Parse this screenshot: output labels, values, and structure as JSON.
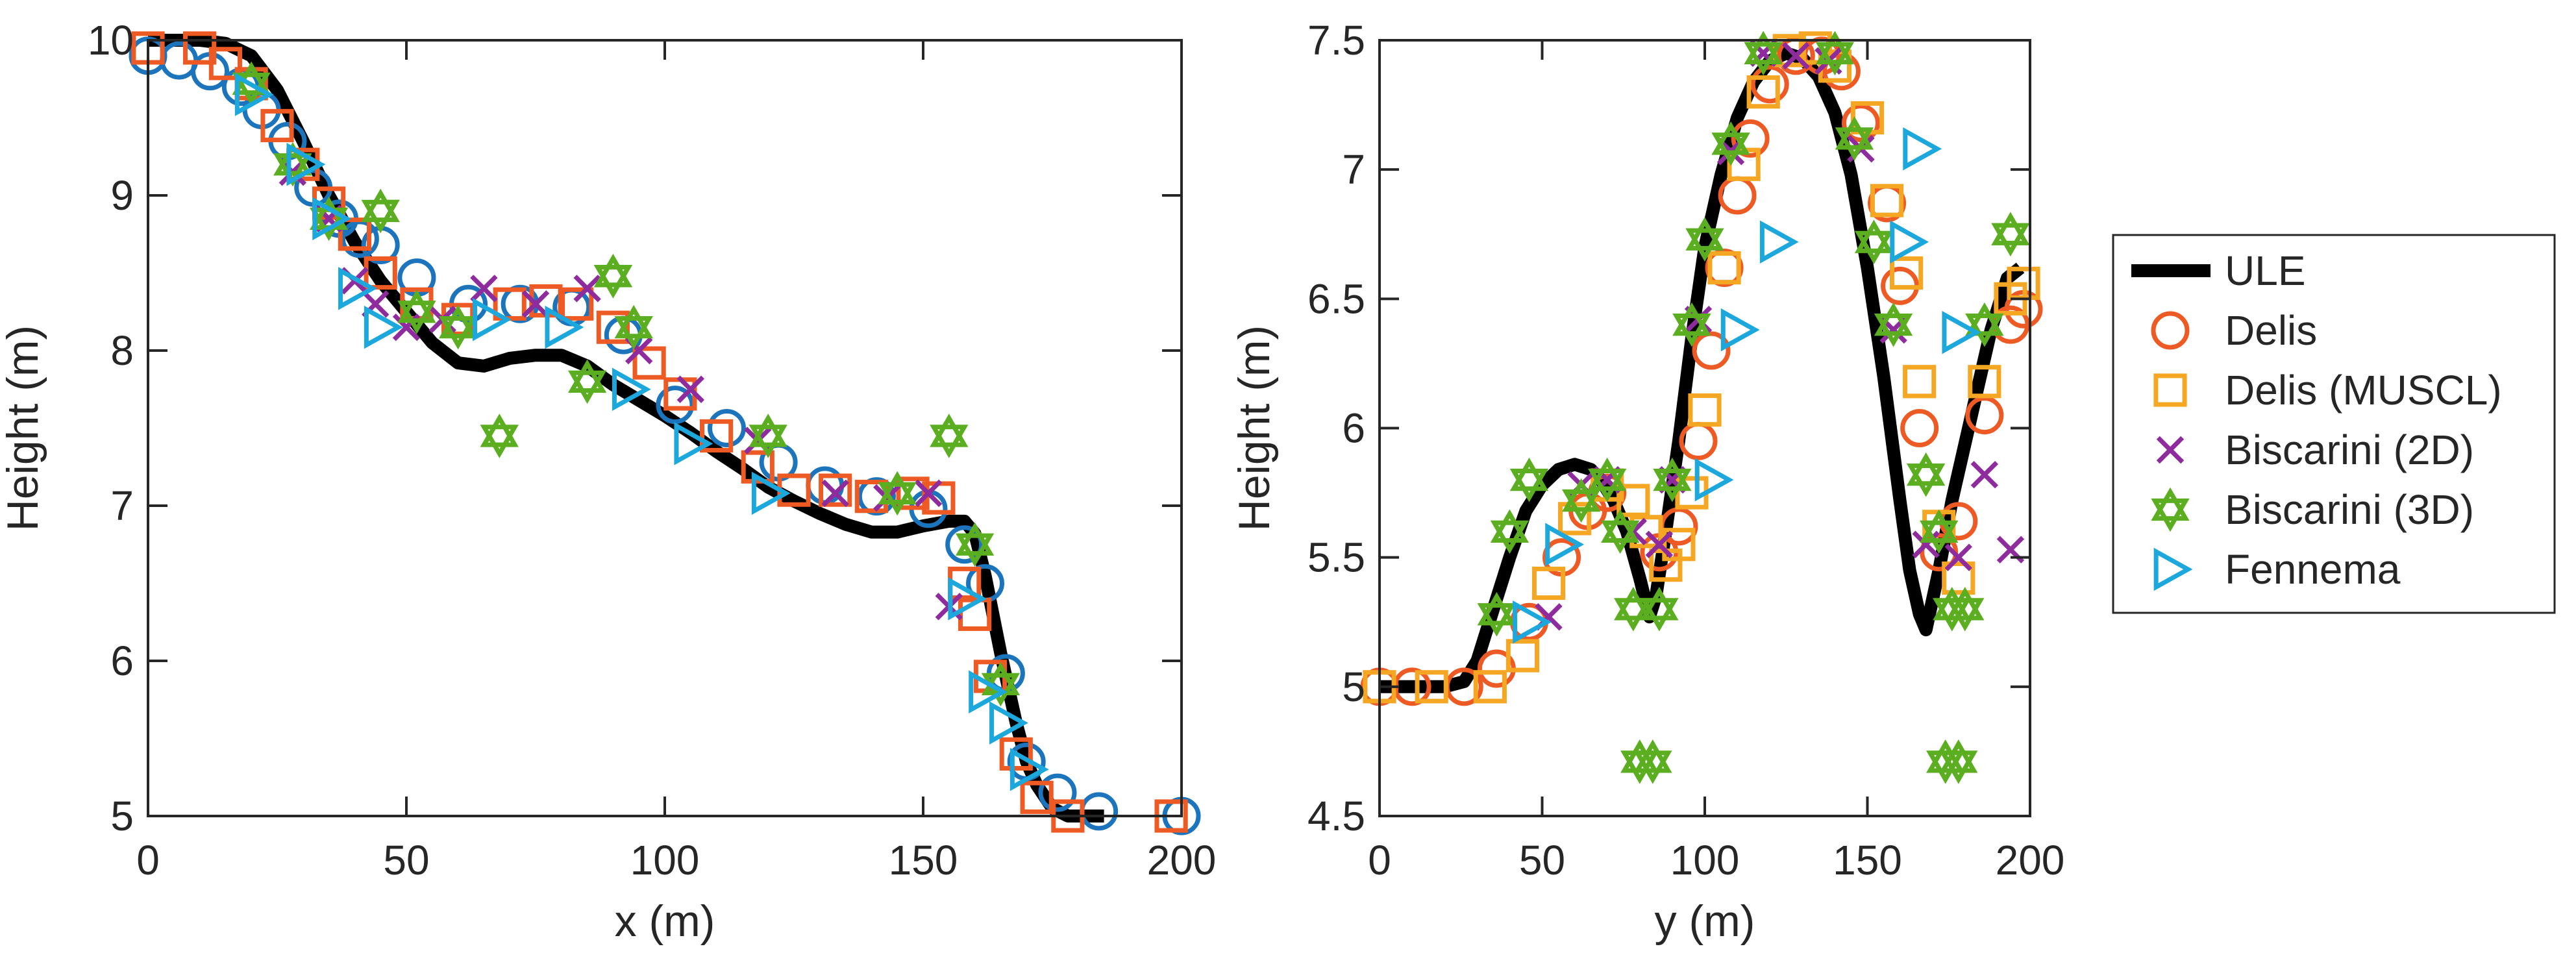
{
  "colors": {
    "ULE": "#000000",
    "Delis": "#EE5A24",
    "Delis (MUSCL)": "#F5A623",
    "Biscarini (2D)": "#8E2C9E",
    "Biscarini (3D)": "#5AAE1F",
    "Fennema": "#1CA8DD",
    "Delis-left": "#1C75BC"
  },
  "legend": {
    "entries": [
      {
        "name": "ULE",
        "marker": "line"
      },
      {
        "name": "Delis",
        "marker": "circle"
      },
      {
        "name": "Delis (MUSCL)",
        "marker": "square"
      },
      {
        "name": "Biscarini (2D)",
        "marker": "x"
      },
      {
        "name": "Biscarini (3D)",
        "marker": "hexagram"
      },
      {
        "name": "Fennema",
        "marker": "triangle-right"
      }
    ]
  },
  "chart_data": [
    {
      "type": "line",
      "xlabel": "x (m)",
      "ylabel": "Height (m)",
      "xlim": [
        0,
        200
      ],
      "ylim": [
        5,
        10
      ],
      "xticks": [
        0,
        50,
        100,
        150,
        200
      ],
      "yticks": [
        5,
        6,
        7,
        8,
        9,
        10
      ],
      "series": [
        {
          "name": "ULE",
          "marker": "line",
          "x": [
            0,
            10,
            15,
            20,
            25,
            30,
            35,
            40,
            45,
            50,
            55,
            60,
            65,
            70,
            75,
            80,
            85,
            90,
            95,
            100,
            105,
            110,
            115,
            120,
            125,
            130,
            135,
            140,
            145,
            150,
            155,
            158,
            160,
            162,
            165,
            168,
            170,
            172,
            175,
            178,
            180,
            185
          ],
          "y": [
            10,
            10,
            9.98,
            9.9,
            9.68,
            9.35,
            9.0,
            8.7,
            8.45,
            8.25,
            8.05,
            7.92,
            7.9,
            7.95,
            7.97,
            7.97,
            7.9,
            7.78,
            7.68,
            7.58,
            7.47,
            7.35,
            7.24,
            7.12,
            7.03,
            6.95,
            6.88,
            6.83,
            6.83,
            6.87,
            6.9,
            6.9,
            6.82,
            6.55,
            6.05,
            5.6,
            5.35,
            5.2,
            5.05,
            5.0,
            5.0,
            5.0
          ]
        },
        {
          "name": "Delis",
          "marker": "circle",
          "color_key": "Delis-left",
          "x": [
            0,
            6,
            12,
            18,
            22,
            27,
            32,
            37,
            41,
            45,
            52,
            62,
            72,
            82,
            92,
            102,
            112,
            122,
            131,
            141,
            151,
            158,
            162,
            166,
            170,
            176,
            184,
            200
          ],
          "y": [
            9.9,
            9.87,
            9.8,
            9.7,
            9.55,
            9.35,
            9.05,
            8.85,
            8.72,
            8.68,
            8.47,
            8.3,
            8.3,
            8.28,
            8.1,
            7.65,
            7.5,
            7.28,
            7.13,
            7.06,
            6.98,
            6.75,
            6.5,
            5.92,
            5.35,
            5.15,
            5.03,
            5.0
          ]
        },
        {
          "name": "Delis (MUSCL)",
          "marker": "square",
          "color_key": "Delis",
          "x": [
            0,
            10,
            15,
            20,
            25,
            30,
            35,
            40,
            45,
            52,
            60,
            70,
            77,
            83,
            90,
            97,
            103,
            110,
            118,
            125,
            133,
            140,
            148,
            153,
            158,
            160,
            163,
            168,
            172,
            178,
            198
          ],
          "y": [
            9.95,
            9.95,
            9.85,
            9.72,
            9.45,
            9.2,
            8.95,
            8.75,
            8.5,
            8.3,
            8.2,
            8.3,
            8.32,
            8.3,
            8.15,
            7.92,
            7.72,
            7.45,
            7.25,
            7.1,
            7.1,
            7.06,
            7.08,
            7.05,
            6.5,
            6.3,
            5.9,
            5.4,
            5.12,
            5.0,
            5.0
          ]
        },
        {
          "name": "Biscarini (2D)",
          "marker": "x",
          "x": [
            28,
            35,
            40,
            44,
            50,
            57,
            65,
            75,
            85,
            95,
            105,
            118,
            133,
            143,
            151,
            155
          ],
          "y": [
            9.15,
            8.85,
            8.45,
            8.3,
            8.15,
            8.2,
            8.4,
            8.3,
            8.4,
            8.0,
            7.75,
            7.42,
            7.08,
            7.05,
            7.08,
            6.35
          ]
        },
        {
          "name": "Biscarini (3D)",
          "marker": "hexagram",
          "x": [
            20,
            28,
            35,
            45,
            52,
            60,
            68,
            85,
            90,
            90,
            94,
            120,
            145,
            155,
            160,
            165
          ],
          "y": [
            9.72,
            9.2,
            8.85,
            8.9,
            8.25,
            8.15,
            7.45,
            7.8,
            8.48,
            8.48,
            8.15,
            7.45,
            7.08,
            7.45,
            6.75,
            5.85
          ]
        },
        {
          "name": "Fennema",
          "marker": "triangle-right",
          "x": [
            20,
            30,
            35,
            40,
            45,
            66,
            80,
            93,
            105,
            120,
            158,
            162,
            166,
            170
          ],
          "y": [
            9.65,
            9.2,
            8.85,
            8.4,
            8.15,
            8.2,
            8.15,
            7.75,
            7.4,
            7.08,
            6.4,
            5.8,
            5.6,
            5.3
          ]
        }
      ]
    },
    {
      "type": "line",
      "xlabel": "y (m)",
      "ylabel": "Height (m)",
      "xlim": [
        0,
        200
      ],
      "ylim": [
        4.5,
        7.5
      ],
      "xticks": [
        0,
        50,
        100,
        150,
        200
      ],
      "yticks": [
        4.5,
        5,
        5.5,
        6,
        6.5,
        7,
        7.5
      ],
      "series": [
        {
          "name": "ULE",
          "marker": "line",
          "x": [
            0,
            20,
            26,
            30,
            35,
            40,
            45,
            50,
            55,
            60,
            65,
            68,
            72,
            76,
            80,
            83,
            85,
            88,
            92,
            96,
            100,
            105,
            110,
            115,
            120,
            125,
            130,
            135,
            140,
            145,
            150,
            155,
            160,
            163,
            166,
            168,
            172,
            176,
            182,
            188,
            193,
            197
          ],
          "y": [
            5.0,
            5.0,
            5.02,
            5.1,
            5.3,
            5.5,
            5.68,
            5.78,
            5.84,
            5.86,
            5.84,
            5.8,
            5.72,
            5.6,
            5.42,
            5.27,
            5.35,
            5.6,
            5.95,
            6.35,
            6.7,
            6.98,
            7.2,
            7.34,
            7.42,
            7.45,
            7.43,
            7.36,
            7.22,
            6.98,
            6.62,
            6.2,
            5.72,
            5.45,
            5.28,
            5.22,
            5.45,
            5.72,
            6.05,
            6.38,
            6.58,
            6.62
          ]
        },
        {
          "name": "Delis",
          "marker": "circle",
          "color_key": "Delis",
          "x": [
            0,
            10,
            26,
            36,
            46,
            56,
            64,
            70,
            86,
            92,
            98,
            102,
            106,
            110,
            114,
            120,
            128,
            136,
            142,
            148,
            156,
            160,
            166,
            172,
            178,
            186,
            194,
            198
          ],
          "y": [
            5.0,
            5.0,
            5.0,
            5.07,
            5.25,
            5.5,
            5.68,
            5.75,
            5.52,
            5.62,
            5.95,
            6.3,
            6.62,
            6.9,
            7.12,
            7.33,
            7.44,
            7.44,
            7.38,
            7.18,
            6.87,
            6.55,
            6.0,
            5.52,
            5.64,
            6.05,
            6.4,
            6.46
          ]
        },
        {
          "name": "Delis (MUSCL)",
          "marker": "square",
          "color_key": "Delis (MUSCL)",
          "x": [
            0,
            16,
            34,
            44,
            52,
            60,
            70,
            78,
            82,
            88,
            92,
            96,
            100,
            106,
            112,
            118,
            126,
            134,
            140,
            150,
            156,
            162,
            166,
            172,
            178,
            186,
            194,
            198
          ],
          "y": [
            5.0,
            5.0,
            5.0,
            5.12,
            5.4,
            5.65,
            5.78,
            5.72,
            5.6,
            5.47,
            5.55,
            5.75,
            6.07,
            6.62,
            7.02,
            7.3,
            7.46,
            7.47,
            7.4,
            7.2,
            6.88,
            6.6,
            6.18,
            5.62,
            5.42,
            6.18,
            6.5,
            6.56
          ]
        },
        {
          "name": "Biscarini (2D)",
          "marker": "x",
          "x": [
            52,
            62,
            70,
            78,
            86,
            90,
            98,
            108,
            118,
            128,
            138,
            148,
            158,
            168,
            178,
            186,
            194
          ],
          "y": [
            5.27,
            5.78,
            5.8,
            5.6,
            5.55,
            5.8,
            6.42,
            7.07,
            7.45,
            7.44,
            7.42,
            7.08,
            6.38,
            5.55,
            5.5,
            5.82,
            5.53
          ]
        },
        {
          "name": "Biscarini (3D)",
          "marker": "hexagram",
          "x": [
            36,
            40,
            46,
            62,
            70,
            74,
            78,
            80,
            84,
            86,
            90,
            96,
            100,
            108,
            118,
            140,
            146,
            152,
            158,
            168,
            172,
            174,
            176,
            178,
            180,
            186,
            194
          ],
          "y": [
            5.28,
            5.6,
            5.8,
            5.72,
            5.8,
            5.6,
            5.3,
            4.71,
            4.71,
            5.3,
            5.8,
            6.4,
            6.73,
            7.1,
            7.45,
            7.45,
            7.12,
            6.72,
            6.4,
            5.82,
            5.6,
            4.71,
            5.3,
            4.71,
            5.3,
            6.4,
            6.75
          ]
        },
        {
          "name": "Fennema",
          "marker": "triangle-right",
          "x": [
            46,
            56,
            102,
            110,
            122,
            162,
            166,
            178
          ],
          "y": [
            5.25,
            5.55,
            5.8,
            6.38,
            6.72,
            6.72,
            7.08,
            6.37
          ]
        }
      ]
    }
  ]
}
